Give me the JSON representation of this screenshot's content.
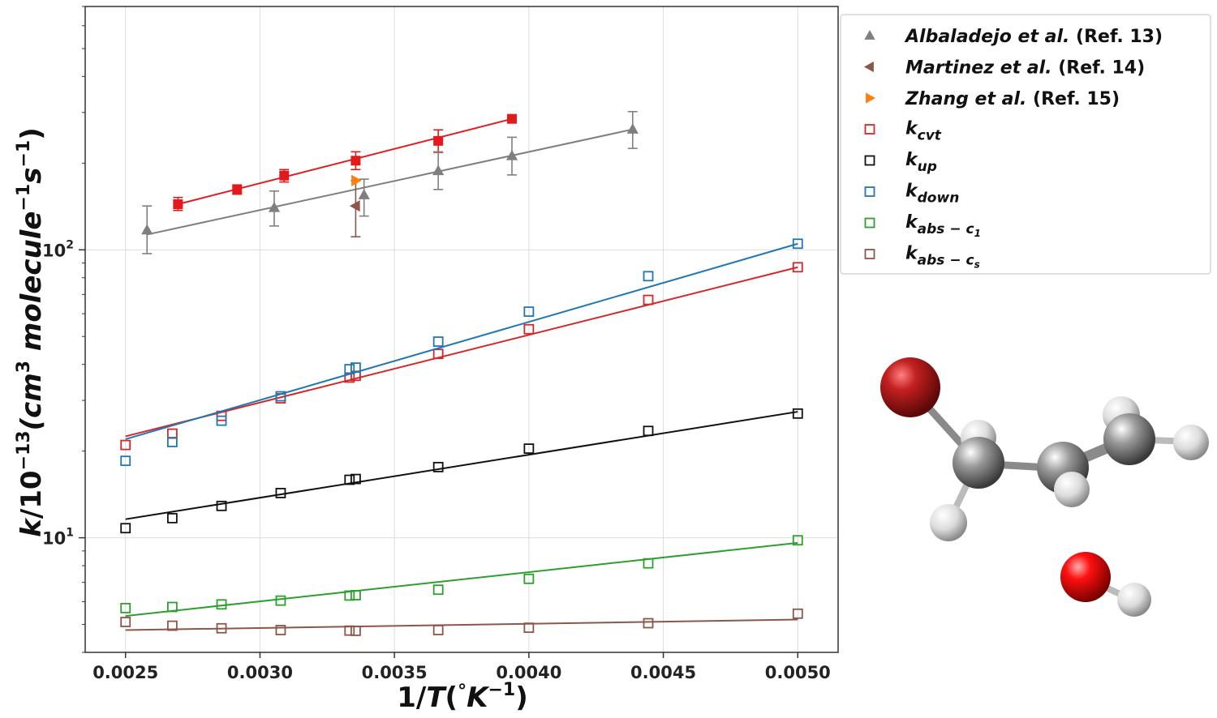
{
  "chart_data": {
    "type": "scatter",
    "x_scale": "linear",
    "y_scale": "log",
    "xlim": [
      0.00235,
      0.00515
    ],
    "ylim": [
      4.0,
      700
    ],
    "grid": true,
    "legend_position": "top-right",
    "xlabel": {
      "main": "1/",
      "var": "T",
      "paren_open": "(",
      "deg": "°",
      "unit": "K",
      "exp": "−1",
      "paren_close": ")"
    },
    "ylabel": {
      "var": "k",
      "slash": "/10",
      "exp1": "−13",
      "mid": "(cm",
      "exp2": "3",
      "mol": " molecule",
      "exp3": "−1",
      "s": "s",
      "exp4": "−1",
      "close": ")"
    },
    "x_ticks": [
      {
        "value": 0.0025,
        "label": "0.0025"
      },
      {
        "value": 0.003,
        "label": "0.0030"
      },
      {
        "value": 0.0035,
        "label": "0.0035"
      },
      {
        "value": 0.004,
        "label": "0.0040"
      },
      {
        "value": 0.0045,
        "label": "0.0045"
      },
      {
        "value": 0.005,
        "label": "0.0050"
      }
    ],
    "y_ticks": [
      {
        "value": 10,
        "base": "10",
        "exp": "1"
      },
      {
        "value": 100,
        "base": "10",
        "exp": "2"
      }
    ],
    "experimental": [
      {
        "name": "Albaladejo et al.",
        "ref": "(Ref.  13)",
        "marker": "triangle-up",
        "color": "#7f7f7f",
        "points": [
          {
            "x": 0.00258,
            "y": 117,
            "lo": 97,
            "hi": 142
          },
          {
            "x": 0.003053,
            "y": 140,
            "lo": 121,
            "hi": 160
          },
          {
            "x": 0.003387,
            "y": 155,
            "lo": 131,
            "hi": 176
          },
          {
            "x": 0.003663,
            "y": 188,
            "lo": 162,
            "hi": 219
          },
          {
            "x": 0.003937,
            "y": 212,
            "lo": 182,
            "hi": 246
          },
          {
            "x": 0.004386,
            "y": 262,
            "lo": 225,
            "hi": 302
          }
        ],
        "fit": [
          [
            0.00258,
            113
          ],
          [
            0.004386,
            262
          ]
        ]
      },
      {
        "name": "Martinez et al.",
        "ref": "(Ref.  14)",
        "marker": "triangle-left",
        "color": "#8c564b",
        "points": [
          {
            "x": 0.003356,
            "y": 142,
            "lo": 111,
            "hi": 174
          }
        ]
      },
      {
        "name": "Zhang et al.",
        "ref": "(Ref.  15)",
        "marker": "triangle-right",
        "color": "#ff7f0e",
        "points": [
          {
            "x": 0.003356,
            "y": 174
          }
        ]
      }
    ],
    "unlabeled_series": [
      {
        "marker": "square-filled",
        "color": "#e31a1c",
        "points": [
          {
            "x": 0.002695,
            "y": 144,
            "lo": 137,
            "hi": 152
          },
          {
            "x": 0.002915,
            "y": 162,
            "lo": 156,
            "hi": 168
          },
          {
            "x": 0.00309,
            "y": 181,
            "lo": 172,
            "hi": 190
          },
          {
            "x": 0.003356,
            "y": 204,
            "lo": 190,
            "hi": 219
          },
          {
            "x": 0.003663,
            "y": 239,
            "lo": 218,
            "hi": 261
          },
          {
            "x": 0.003937,
            "y": 285
          }
        ],
        "fit": [
          [
            0.002695,
            144
          ],
          [
            0.003937,
            285
          ]
        ]
      }
    ],
    "theory": [
      {
        "name": "k",
        "sub": "cvt",
        "color": "#d62728",
        "x": [
          0.0025,
          0.002674,
          0.002857,
          0.003077,
          0.003333,
          0.003356,
          0.003663,
          0.004,
          0.004444,
          0.005
        ],
        "y": [
          21.0,
          23.0,
          26.5,
          30.5,
          36.0,
          36.5,
          43.5,
          53.0,
          67.0,
          87.0
        ],
        "fit": [
          [
            0.0025,
            22.5
          ],
          [
            0.005,
            87
          ]
        ]
      },
      {
        "name": "k",
        "sub": "up",
        "color": "#111111",
        "x": [
          0.0025,
          0.002674,
          0.002857,
          0.003077,
          0.003333,
          0.003356,
          0.003663,
          0.004,
          0.004444,
          0.005
        ],
        "y": [
          10.8,
          11.7,
          12.9,
          14.3,
          15.9,
          16.0,
          17.6,
          20.4,
          23.5,
          27.0
        ],
        "fit": [
          [
            0.0025,
            11.6
          ],
          [
            0.005,
            27.4
          ]
        ]
      },
      {
        "name": "k",
        "sub": "down",
        "color": "#1f77b4",
        "x": [
          0.0025,
          0.002674,
          0.002857,
          0.003333,
          0.003356,
          0.003077,
          0.003663,
          0.004,
          0.004444,
          0.005
        ],
        "y": [
          18.5,
          21.5,
          25.5,
          38.5,
          39.0,
          31.0,
          48.0,
          61.0,
          81.0,
          105.0
        ],
        "fit": [
          [
            0.0025,
            22.0
          ],
          [
            0.005,
            105
          ]
        ]
      },
      {
        "name": "k",
        "sub": "abs − c",
        "subsub": "1",
        "color": "#2ca02c",
        "x": [
          0.0025,
          0.002674,
          0.002857,
          0.003077,
          0.003333,
          0.003356,
          0.003663,
          0.004,
          0.004444,
          0.005
        ],
        "y": [
          5.7,
          5.75,
          5.87,
          6.05,
          6.3,
          6.32,
          6.6,
          7.2,
          8.15,
          9.8
        ],
        "fit": [
          [
            0.0025,
            5.35
          ],
          [
            0.005,
            9.6
          ]
        ]
      },
      {
        "name": "k",
        "sub": "abs − c",
        "subsub": "s",
        "color": "#8c564b",
        "x": [
          0.0025,
          0.002674,
          0.002857,
          0.003077,
          0.003333,
          0.003356,
          0.003663,
          0.004,
          0.004444,
          0.005
        ],
        "y": [
          5.1,
          4.95,
          4.85,
          4.78,
          4.76,
          4.75,
          4.78,
          4.87,
          5.05,
          5.45
        ],
        "fit": [
          [
            0.0025,
            4.78
          ],
          [
            0.005,
            5.2
          ]
        ]
      }
    ]
  },
  "molecule": {
    "atom_colors": {
      "bromine": "#b01a1a",
      "carbon": "#8a8a8a",
      "hydrogen": "#e0e0e0",
      "oxygen": "#e00000"
    }
  }
}
